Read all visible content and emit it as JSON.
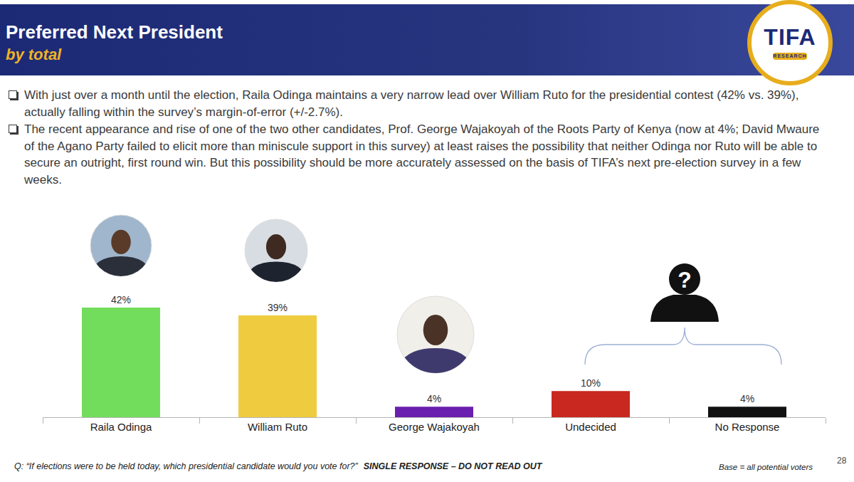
{
  "slide": {
    "title": "Preferred Next President",
    "subtitle": "by total",
    "logo": "TIFA",
    "logo_subtitle": "RESEARCH",
    "bullets": [
      "With just over a month until the election, Raila Odinga maintains a very narrow lead over William Ruto for the presidential contest (42% vs. 39%), actually falling within the survey’s margin-of-error (+/-2.7%).",
      "The recent appearance and rise of one of the two other candidates, Prof. George Wajakoyah of the Roots Party of Kenya (now at 4%; David Mwaure of the Agano Party failed to elicit more than miniscule support in this survey) at least raises the possibility that neither Odinga nor Ruto will be able to secure an outright, first round win.  But this possibility should be more accurately assessed on the basis of TIFA’s next pre-election survey in a few weeks."
    ],
    "unknown_icon": "?",
    "question": "Q: “If elections were to be held today, which presidential candidate would you vote for?”",
    "question_note": "SINGLE RESPONSE – DO NOT READ OUT",
    "base": "Base = all potential voters",
    "page": "28"
  },
  "chart_data": {
    "type": "bar",
    "categories": [
      "Raila Odinga",
      "William Ruto",
      "George Wajakoyah",
      "Undecided",
      "No Response"
    ],
    "values": [
      42,
      39,
      4,
      10,
      4
    ],
    "value_labels": [
      "42%",
      "39%",
      "4%",
      "10%",
      "4%"
    ],
    "colors": [
      "#72dd5c",
      "#efcc3f",
      "#6a1fae",
      "#c8281f",
      "#111111"
    ],
    "data_labels": true,
    "tick_labels": "x",
    "grid": false,
    "ylim": [
      0,
      45
    ]
  }
}
